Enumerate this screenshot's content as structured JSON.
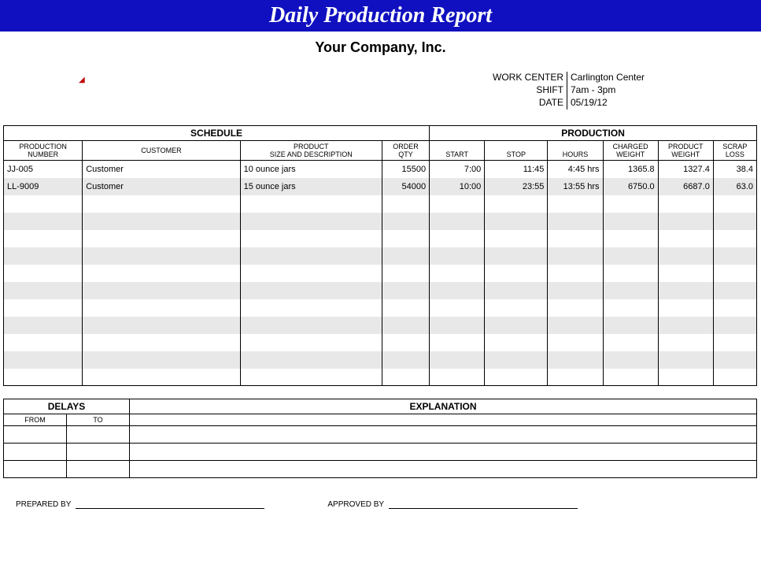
{
  "title": "Daily Production Report",
  "company": "Your Company, Inc.",
  "meta": {
    "work_center_label": "WORK CENTER",
    "work_center_value": "Carlington Center",
    "shift_label": "SHIFT",
    "shift_value": "7am - 3pm",
    "date_label": "DATE",
    "date_value": "05/19/12"
  },
  "sections": {
    "schedule": "SCHEDULE",
    "production": "PRODUCTION"
  },
  "columns": {
    "prod_num1": "PRODUCTION",
    "prod_num2": "NUMBER",
    "customer": "CUSTOMER",
    "prod_sd1": "PRODUCT",
    "prod_sd2": "SIZE AND DESCRIPTION",
    "order1": "ORDER",
    "order2": "QTY",
    "start": "START",
    "stop": "STOP",
    "hours": "HOURS",
    "chg1": "CHARGED",
    "chg2": "WEIGHT",
    "pw1": "PRODUCT",
    "pw2": "WEIGHT",
    "sl1": "SCRAP",
    "sl2": "LOSS"
  },
  "rows": [
    {
      "num": "JJ-005",
      "cust": "Customer",
      "desc": "10 ounce jars",
      "qty": "15500",
      "start": "7:00",
      "stop": "11:45",
      "hours": "4:45 hrs",
      "chg": "1365.8",
      "pw": "1327.4",
      "sl": "38.4"
    },
    {
      "num": "LL-9009",
      "cust": "Customer",
      "desc": "15 ounce jars",
      "qty": "54000",
      "start": "10:00",
      "stop": "23:55",
      "hours": "13:55 hrs",
      "chg": "6750.0",
      "pw": "6687.0",
      "sl": "63.0"
    }
  ],
  "empty_rows": 11,
  "delays": {
    "title": "DELAYS",
    "explanation": "EXPLANATION",
    "from": "FROM",
    "to": "TO",
    "rows": 3
  },
  "signatures": {
    "prepared": "PREPARED BY",
    "approved": "APPROVED BY"
  },
  "colors": {
    "title_bg": "#1010c0",
    "alt_row": "#e8e8e8"
  }
}
